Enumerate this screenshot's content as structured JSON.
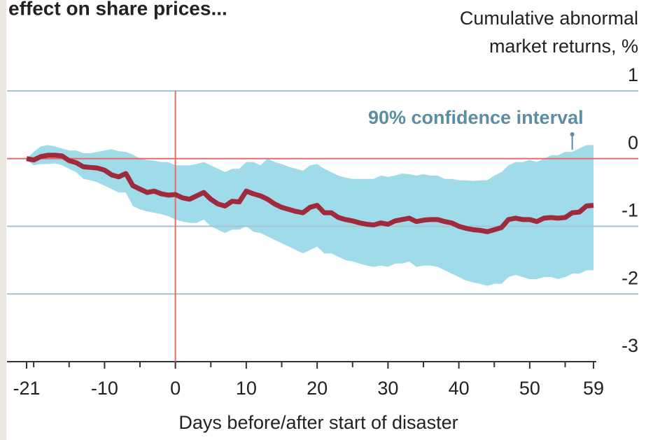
{
  "chart_data": {
    "type": "line",
    "title": "effect on share prices...",
    "y_label": [
      "Cumulative abnormal",
      "market returns, %"
    ],
    "x_label": "Days before/after start of disaster",
    "x": [
      -21,
      -20,
      -19,
      -18,
      -17,
      -16,
      -15,
      -14,
      -13,
      -12,
      -11,
      -10,
      -9,
      -8,
      -7,
      -6,
      -5,
      -4,
      -3,
      -2,
      -1,
      0,
      1,
      2,
      3,
      4,
      5,
      6,
      7,
      8,
      9,
      10,
      11,
      12,
      13,
      14,
      15,
      16,
      17,
      18,
      19,
      20,
      21,
      22,
      23,
      24,
      25,
      26,
      27,
      28,
      29,
      30,
      31,
      32,
      33,
      34,
      35,
      36,
      37,
      38,
      39,
      40,
      41,
      42,
      43,
      44,
      45,
      46,
      47,
      48,
      49,
      50,
      51,
      52,
      53,
      54,
      55,
      56,
      57,
      58,
      59
    ],
    "series": [
      {
        "color": "#9e2a3c",
        "values": [
          0.0,
          -0.02,
          0.03,
          0.05,
          0.05,
          0.04,
          -0.03,
          -0.06,
          -0.12,
          -0.13,
          -0.14,
          -0.17,
          -0.24,
          -0.27,
          -0.22,
          -0.4,
          -0.45,
          -0.5,
          -0.48,
          -0.52,
          -0.54,
          -0.53,
          -0.58,
          -0.6,
          -0.55,
          -0.5,
          -0.6,
          -0.67,
          -0.7,
          -0.63,
          -0.64,
          -0.48,
          -0.52,
          -0.55,
          -0.6,
          -0.67,
          -0.72,
          -0.75,
          -0.78,
          -0.8,
          -0.72,
          -0.69,
          -0.8,
          -0.8,
          -0.87,
          -0.9,
          -0.92,
          -0.95,
          -0.97,
          -0.98,
          -0.95,
          -0.97,
          -0.92,
          -0.9,
          -0.88,
          -0.93,
          -0.91,
          -0.9,
          -0.9,
          -0.93,
          -0.95,
          -1.0,
          -1.03,
          -1.05,
          -1.06,
          -1.08,
          -1.05,
          -1.02,
          -0.9,
          -0.88,
          -0.9,
          -0.9,
          -0.93,
          -0.88,
          -0.87,
          -0.88,
          -0.87,
          -0.8,
          -0.79,
          -0.7,
          -0.69
        ]
      }
    ],
    "band": {
      "name": "90% confidence interval",
      "color": "#9fdbe8",
      "upper": [
        0.0,
        0.1,
        0.18,
        0.2,
        0.18,
        0.15,
        0.12,
        0.12,
        0.08,
        0.08,
        0.1,
        0.12,
        0.14,
        0.11,
        0.1,
        0.06,
        0.0,
        -0.02,
        -0.03,
        -0.05,
        -0.05,
        -0.1,
        -0.1,
        -0.1,
        -0.08,
        -0.05,
        -0.1,
        -0.15,
        -0.2,
        -0.15,
        -0.15,
        -0.05,
        -0.05,
        -0.1,
        0.0,
        -0.05,
        -0.08,
        -0.12,
        -0.15,
        -0.18,
        -0.1,
        -0.08,
        -0.15,
        -0.2,
        -0.25,
        -0.28,
        -0.3,
        -0.3,
        -0.3,
        -0.3,
        -0.25,
        -0.27,
        -0.25,
        -0.22,
        -0.23,
        -0.25,
        -0.23,
        -0.25,
        -0.25,
        -0.3,
        -0.3,
        -0.32,
        -0.32,
        -0.33,
        -0.32,
        -0.32,
        -0.25,
        -0.2,
        -0.1,
        -0.05,
        -0.05,
        -0.02,
        -0.05,
        0.0,
        0.05,
        0.05,
        0.1,
        0.1,
        0.15,
        0.2,
        0.2
      ],
      "lower": [
        -0.02,
        -0.1,
        -0.08,
        -0.08,
        -0.07,
        -0.1,
        -0.15,
        -0.2,
        -0.3,
        -0.32,
        -0.35,
        -0.4,
        -0.45,
        -0.5,
        -0.5,
        -0.7,
        -0.75,
        -0.78,
        -0.8,
        -0.82,
        -0.85,
        -0.9,
        -0.93,
        -0.95,
        -0.95,
        -0.9,
        -1.0,
        -1.05,
        -1.1,
        -1.05,
        -1.05,
        -1.0,
        -1.08,
        -1.1,
        -1.15,
        -1.2,
        -1.25,
        -1.3,
        -1.35,
        -1.4,
        -1.35,
        -1.3,
        -1.4,
        -1.4,
        -1.45,
        -1.5,
        -1.52,
        -1.55,
        -1.58,
        -1.6,
        -1.58,
        -1.6,
        -1.55,
        -1.55,
        -1.52,
        -1.6,
        -1.58,
        -1.58,
        -1.6,
        -1.65,
        -1.7,
        -1.75,
        -1.8,
        -1.83,
        -1.85,
        -1.88,
        -1.85,
        -1.85,
        -1.75,
        -1.72,
        -1.75,
        -1.78,
        -1.78,
        -1.75,
        -1.75,
        -1.78,
        -1.75,
        -1.7,
        -1.7,
        -1.65,
        -1.65
      ]
    },
    "annotation_x": 56,
    "xlim": [
      -21,
      59
    ],
    "ylim": [
      -3,
      1
    ],
    "xticks": [
      -21,
      -10,
      0,
      10,
      20,
      30,
      40,
      50,
      59
    ],
    "xminorticks": [
      -20,
      -15,
      -5,
      5,
      15,
      25,
      35,
      45,
      55
    ],
    "yticks": [
      -3,
      -2,
      -1,
      0,
      1
    ],
    "grid": true,
    "grid_color": "#a8c3cf",
    "zero_line_color": "#e8696b",
    "background": "#ffffff"
  }
}
